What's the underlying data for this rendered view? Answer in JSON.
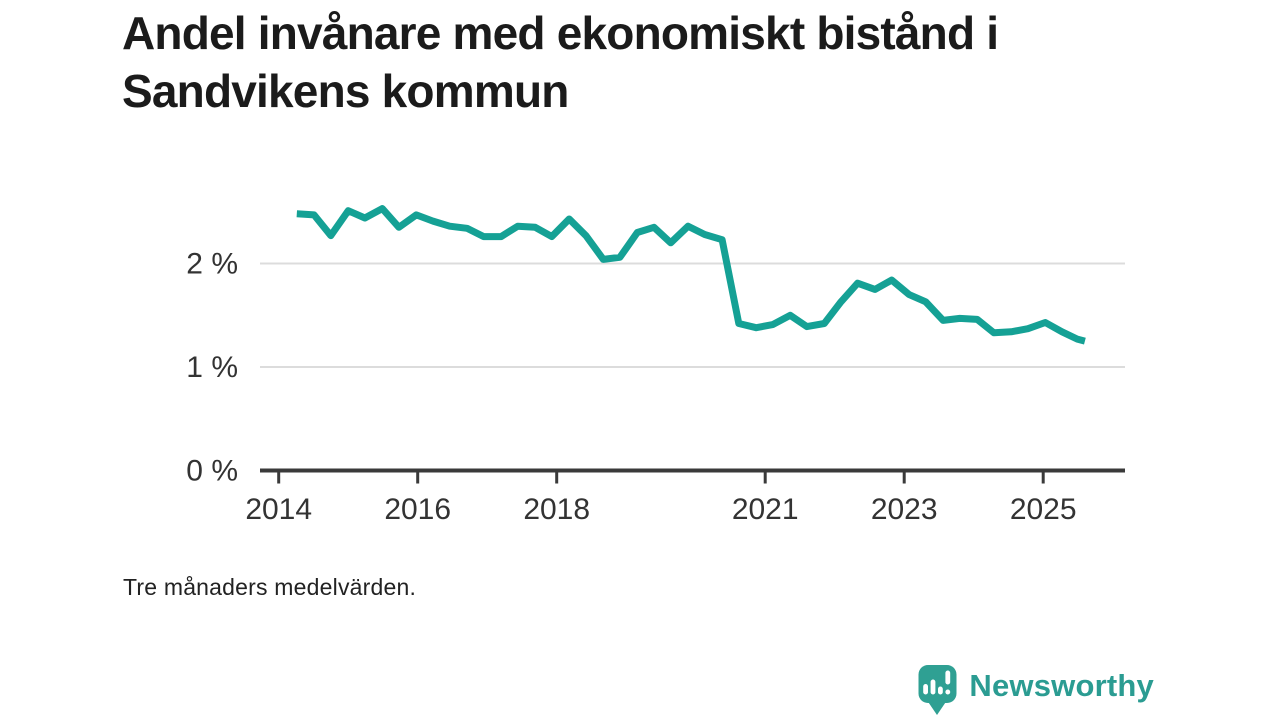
{
  "title": "Andel invånare med ekonomiskt bistånd i Sandvikens kommun",
  "footnote": "Tre månaders medelvärden.",
  "brand": {
    "name": "Newsworthy",
    "icon": "bar-chart-speech-bubble-icon",
    "color": "#2fa093"
  },
  "colors": {
    "line": "#15a195",
    "grid": "#dcdcdc",
    "axis": "#3a3a3a",
    "tick_text": "#333333"
  },
  "chart_data": {
    "type": "line",
    "title": "Andel invånare med ekonomiskt bistånd i Sandvikens kommun",
    "note": "Tre månaders medelvärden.",
    "series_name": "Andel invånare med ekonomiskt bistånd (%)",
    "unit": "%",
    "grid": "horizontal",
    "legend": "none",
    "xlabel": "",
    "ylabel": "",
    "x_ticks": [
      2014,
      2016,
      2018,
      2021,
      2023,
      2025
    ],
    "x_tick_labels": [
      "2014",
      "2016",
      "2018",
      "2021",
      "2023",
      "2025"
    ],
    "y_ticks": [
      {
        "value": 0,
        "label": "0 %"
      },
      {
        "value": 1,
        "label": "1 %"
      },
      {
        "value": 2,
        "label": "2 %"
      }
    ],
    "xlim": [
      2013.73,
      2026.18
    ],
    "ylim": [
      0,
      2.8
    ],
    "x": [
      2014.26,
      2014.51,
      2014.75,
      2015.0,
      2015.24,
      2015.49,
      2015.73,
      2015.98,
      2016.22,
      2016.46,
      2016.71,
      2016.95,
      2017.2,
      2017.44,
      2017.69,
      2017.93,
      2018.18,
      2018.42,
      2018.67,
      2018.91,
      2019.16,
      2019.4,
      2019.64,
      2019.89,
      2020.13,
      2020.38,
      2020.62,
      2020.87,
      2021.11,
      2021.36,
      2021.6,
      2021.85,
      2022.09,
      2022.33,
      2022.58,
      2022.82,
      2023.07,
      2023.31,
      2023.56,
      2023.8,
      2024.05,
      2024.29,
      2024.54,
      2024.78,
      2025.03,
      2025.27,
      2025.49,
      2025.6
    ],
    "values": [
      2.48,
      2.47,
      2.27,
      2.51,
      2.44,
      2.53,
      2.35,
      2.47,
      2.41,
      2.36,
      2.34,
      2.26,
      2.26,
      2.36,
      2.35,
      2.26,
      2.43,
      2.27,
      2.04,
      2.06,
      2.3,
      2.35,
      2.2,
      2.36,
      2.28,
      2.23,
      1.42,
      1.38,
      1.41,
      1.5,
      1.39,
      1.42,
      1.63,
      1.81,
      1.75,
      1.84,
      1.7,
      1.63,
      1.45,
      1.47,
      1.46,
      1.33,
      1.34,
      1.37,
      1.43,
      1.34,
      1.27,
      1.25
    ]
  }
}
